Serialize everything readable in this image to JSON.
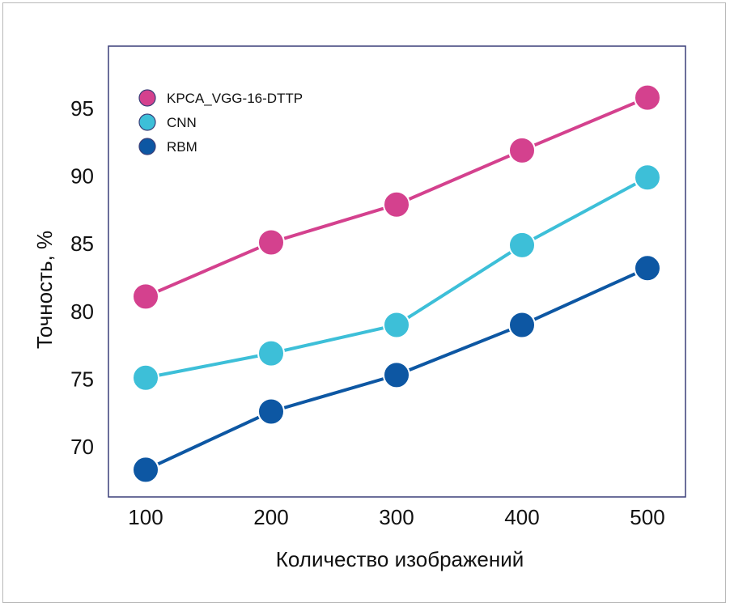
{
  "chart_data": {
    "type": "line",
    "xlabel": "Количество изображений",
    "ylabel": "Точность, %",
    "x": [
      100,
      200,
      300,
      400,
      500
    ],
    "xticks": [
      "100",
      "200",
      "300",
      "400",
      "500"
    ],
    "yticks": [
      "70",
      "75",
      "80",
      "85",
      "90",
      "95"
    ],
    "xlim": [
      100,
      500
    ],
    "ylim": [
      67,
      98
    ],
    "grid": false,
    "legend_position": "top-left",
    "series": [
      {
        "name": "KPCA_VGG-16-DTTP",
        "color": "#d4418e",
        "values": [
          81.1,
          85.1,
          87.9,
          91.9,
          95.8
        ]
      },
      {
        "name": "CNN",
        "color": "#3dbfd8",
        "values": [
          75.1,
          76.9,
          79.0,
          84.9,
          89.9
        ]
      },
      {
        "name": "RBM",
        "color": "#0d57a3",
        "values": [
          68.3,
          72.6,
          75.3,
          79.0,
          83.2
        ]
      }
    ]
  }
}
